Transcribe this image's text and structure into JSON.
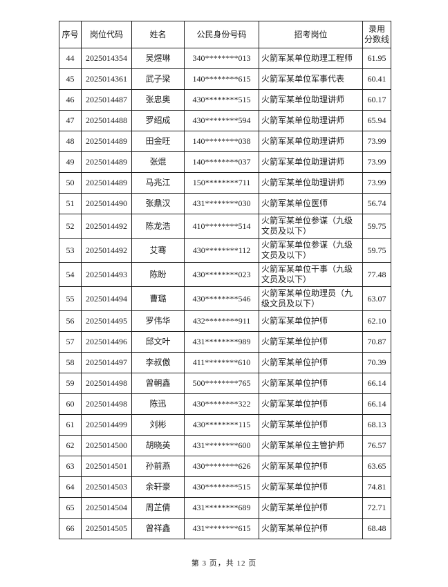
{
  "colors": {
    "text": "#1b1b1b",
    "border": "#1b1b1b",
    "background": "#ffffff"
  },
  "footer": {
    "text": "第 3 页，共 12 页"
  },
  "table": {
    "columns": [
      {
        "key": "no",
        "label": "序号"
      },
      {
        "key": "code",
        "label": "岗位代码"
      },
      {
        "key": "name",
        "label": "姓名"
      },
      {
        "key": "id",
        "label": "公民身份号码"
      },
      {
        "key": "position",
        "label": "招考岗位"
      },
      {
        "key": "score",
        "label": "录用\n分数线"
      }
    ],
    "rows": [
      {
        "no": "44",
        "code": "2025014354",
        "name": "吴煜琳",
        "id": "340********013",
        "position": "火箭军某单位助理工程师",
        "score": "61.95"
      },
      {
        "no": "45",
        "code": "2025014361",
        "name": "武子梁",
        "id": "140********615",
        "position": "火箭军某单位军事代表",
        "score": "60.41"
      },
      {
        "no": "46",
        "code": "2025014487",
        "name": "张忠奥",
        "id": "430********515",
        "position": "火箭军某单位助理讲师",
        "score": "60.17"
      },
      {
        "no": "47",
        "code": "2025014488",
        "name": "罗绍成",
        "id": "430********594",
        "position": "火箭军某单位助理讲师",
        "score": "65.94"
      },
      {
        "no": "48",
        "code": "2025014489",
        "name": "田金旺",
        "id": "140********038",
        "position": "火箭军某单位助理讲师",
        "score": "73.99"
      },
      {
        "no": "49",
        "code": "2025014489",
        "name": "张焜",
        "id": "140********037",
        "position": "火箭军某单位助理讲师",
        "score": "73.99"
      },
      {
        "no": "50",
        "code": "2025014489",
        "name": "马兆江",
        "id": "150********711",
        "position": "火箭军某单位助理讲师",
        "score": "73.99"
      },
      {
        "no": "51",
        "code": "2025014490",
        "name": "张鼎汉",
        "id": "431********030",
        "position": "火箭军某单位医师",
        "score": "56.74"
      },
      {
        "no": "52",
        "code": "2025014492",
        "name": "陈龙浩",
        "id": "410********514",
        "position": "火箭军某单位参谋（九级文员及以下）",
        "score": "59.75"
      },
      {
        "no": "53",
        "code": "2025014492",
        "name": "艾骞",
        "id": "430********112",
        "position": "火箭军某单位参谋（九级文员及以下）",
        "score": "59.75"
      },
      {
        "no": "54",
        "code": "2025014493",
        "name": "陈盼",
        "id": "430********023",
        "position": "火箭军某单位干事（九级文员及以下）",
        "score": "77.48"
      },
      {
        "no": "55",
        "code": "2025014494",
        "name": "曹璐",
        "id": "430********546",
        "position": "火箭军某单位助理员（九级文员及以下）",
        "score": "63.07"
      },
      {
        "no": "56",
        "code": "2025014495",
        "name": "罗伟华",
        "id": "432********911",
        "position": "火箭军某单位护师",
        "score": "62.10"
      },
      {
        "no": "57",
        "code": "2025014496",
        "name": "邱文叶",
        "id": "431********989",
        "position": "火箭军某单位护师",
        "score": "70.87"
      },
      {
        "no": "58",
        "code": "2025014497",
        "name": "李叔傲",
        "id": "411********610",
        "position": "火箭军某单位护师",
        "score": "70.39"
      },
      {
        "no": "59",
        "code": "2025014498",
        "name": "曾朝鑫",
        "id": "500********765",
        "position": "火箭军某单位护师",
        "score": "66.14"
      },
      {
        "no": "60",
        "code": "2025014498",
        "name": "陈迅",
        "id": "430********322",
        "position": "火箭军某单位护师",
        "score": "66.14"
      },
      {
        "no": "61",
        "code": "2025014499",
        "name": "刘彬",
        "id": "430********115",
        "position": "火箭军某单位护师",
        "score": "68.13"
      },
      {
        "no": "62",
        "code": "2025014500",
        "name": "胡晓英",
        "id": "431********600",
        "position": "火箭军某单位主管护师",
        "score": "76.57"
      },
      {
        "no": "63",
        "code": "2025014501",
        "name": "孙前燕",
        "id": "430********626",
        "position": "火箭军某单位护师",
        "score": "63.65"
      },
      {
        "no": "64",
        "code": "2025014503",
        "name": "余轩豪",
        "id": "430********515",
        "position": "火箭军某单位护师",
        "score": "74.81"
      },
      {
        "no": "65",
        "code": "2025014504",
        "name": "周芷倩",
        "id": "431********689",
        "position": "火箭军某单位护师",
        "score": "72.71"
      },
      {
        "no": "66",
        "code": "2025014505",
        "name": "曾祥鑫",
        "id": "431********615",
        "position": "火箭军某单位护师",
        "score": "68.48"
      }
    ]
  }
}
